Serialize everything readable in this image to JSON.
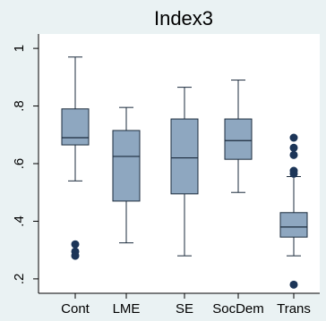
{
  "chart_data": {
    "type": "box",
    "title": "Index3",
    "xlabel": "",
    "ylabel": "",
    "ylim": [
      0.15,
      1.05
    ],
    "yticks": [
      0.2,
      0.4,
      0.6,
      0.8,
      1.0
    ],
    "ytick_labels": [
      ".2",
      ".4",
      ".6",
      ".8",
      "1"
    ],
    "grid": false,
    "legend": "none",
    "colors": {
      "box_fill": "#8ea7c0",
      "box_stroke": "#1b2b3c",
      "outlier": "#1c3558",
      "plot_bg": "#ffffff",
      "page_bg": "#eaf2f3"
    },
    "categories": [
      "Cont",
      "LME",
      "SE",
      "SocDem",
      "Trans"
    ],
    "boxes": [
      {
        "category": "Cont",
        "whisker_low": 0.54,
        "q1": 0.665,
        "median": 0.69,
        "q3": 0.79,
        "whisker_high": 0.97,
        "outliers": [
          0.32,
          0.295,
          0.28
        ]
      },
      {
        "category": "LME",
        "whisker_low": 0.325,
        "q1": 0.47,
        "median": 0.625,
        "q3": 0.715,
        "whisker_high": 0.795,
        "outliers": []
      },
      {
        "category": "SE",
        "whisker_low": 0.28,
        "q1": 0.495,
        "median": 0.62,
        "q3": 0.755,
        "whisker_high": 0.865,
        "outliers": []
      },
      {
        "category": "SocDem",
        "whisker_low": 0.5,
        "q1": 0.615,
        "median": 0.68,
        "q3": 0.755,
        "whisker_high": 0.89,
        "outliers": []
      },
      {
        "category": "Trans",
        "whisker_low": 0.28,
        "q1": 0.345,
        "median": 0.38,
        "q3": 0.43,
        "whisker_high": 0.555,
        "outliers": [
          0.69,
          0.655,
          0.63,
          0.575,
          0.565,
          0.18
        ]
      }
    ]
  }
}
